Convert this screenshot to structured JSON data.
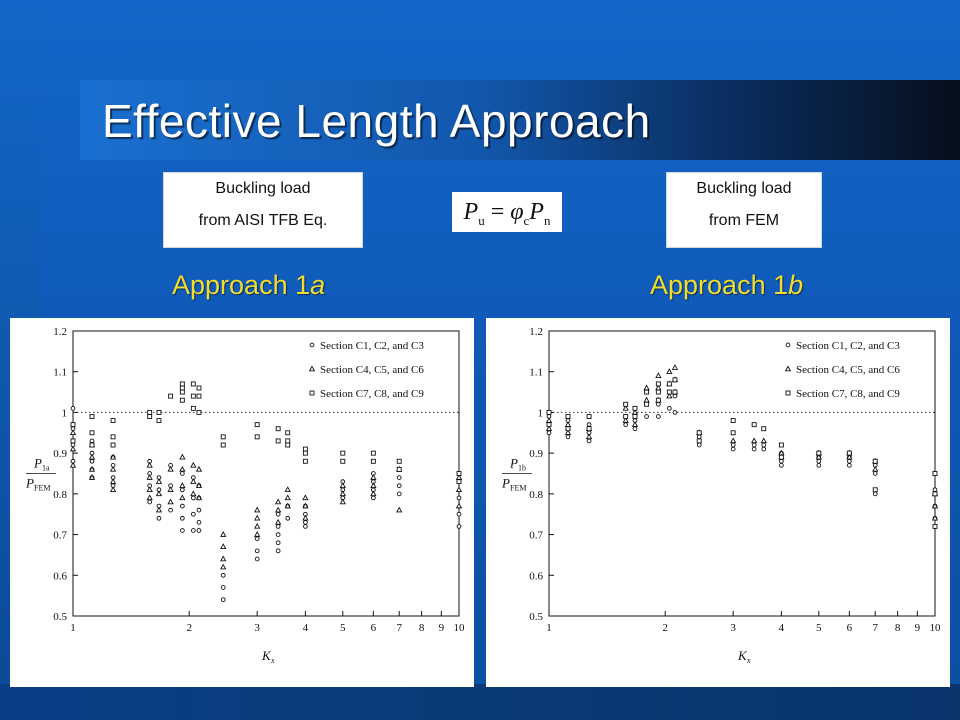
{
  "slide": {
    "title": "Effective Length Approach",
    "left_box": {
      "line1": "Buckling load",
      "line2": "from AISI TFB Eq."
    },
    "right_box": {
      "line1": "Buckling load",
      "line2": "from FEM"
    },
    "formula": {
      "lhs": "P",
      "lhs_sub": "u",
      "eq": " = ",
      "phi": "φ",
      "phi_sub": "c",
      "rhs": "P",
      "rhs_sub": "n"
    },
    "approach_left": {
      "text": "Approach 1",
      "suffix": "a"
    },
    "approach_right": {
      "text": "Approach 1",
      "suffix": "b"
    },
    "colors": {
      "title": "#ffffff",
      "approach": "#f3dc2a",
      "background": "#1466c8"
    }
  },
  "chart_data": [
    {
      "type": "scatter",
      "xscale": "log",
      "xlim": [
        1,
        10
      ],
      "ylim": [
        0.5,
        1.2
      ],
      "xticks": [
        1,
        2,
        3,
        4,
        5,
        6,
        7,
        8,
        9,
        10
      ],
      "yticks": [
        0.5,
        0.6,
        0.7,
        0.8,
        0.9,
        1,
        1.1,
        1.2
      ],
      "ytick_labels": [
        "0.5",
        "0.6",
        "0.7",
        "0.8",
        "0.9",
        "1",
        "1.1",
        "1.2"
      ],
      "xlabel": {
        "main": "K",
        "sub": "x"
      },
      "ylabel": {
        "num_main": "P",
        "num_sub": "1a",
        "den_main": "P",
        "den_sub": "FEM"
      },
      "reference_line": 1,
      "legend_position": "top-right",
      "series": [
        {
          "name": "Section C1, C2, and C3",
          "marker": "circle",
          "x": [
            1,
            1,
            1,
            1,
            1.12,
            1.12,
            1.12,
            1.12,
            1.12,
            1.27,
            1.27,
            1.27,
            1.27,
            1.27,
            1.58,
            1.58,
            1.58,
            1.58,
            1.67,
            1.67,
            1.67,
            1.67,
            1.79,
            1.79,
            1.79,
            1.92,
            1.92,
            1.92,
            1.92,
            1.92,
            2.05,
            2.05,
            2.05,
            2.05,
            2.12,
            2.12,
            2.12,
            2.12,
            2.12,
            2.45,
            2.45,
            2.45,
            3,
            3,
            3,
            3.4,
            3.4,
            3.4,
            3.4,
            3.4,
            3.6,
            3.6,
            4,
            4,
            4,
            4,
            5,
            5,
            5,
            6,
            6,
            6,
            6,
            7,
            7,
            7,
            10,
            10,
            10,
            10
          ],
          "y": [
            1.01,
            0.96,
            0.92,
            0.88,
            0.93,
            0.9,
            0.88,
            0.86,
            0.84,
            0.92,
            0.89,
            0.87,
            0.84,
            0.82,
            0.88,
            0.85,
            0.82,
            0.78,
            0.84,
            0.81,
            0.77,
            0.74,
            0.87,
            0.82,
            0.76,
            0.85,
            0.81,
            0.77,
            0.74,
            0.71,
            0.84,
            0.79,
            0.75,
            0.71,
            0.82,
            0.79,
            0.76,
            0.73,
            0.71,
            0.6,
            0.57,
            0.54,
            0.69,
            0.66,
            0.64,
            0.75,
            0.72,
            0.7,
            0.68,
            0.66,
            0.77,
            0.74,
            0.77,
            0.75,
            0.73,
            0.72,
            0.83,
            0.81,
            0.79,
            0.85,
            0.83,
            0.81,
            0.79,
            0.84,
            0.82,
            0.8,
            0.83,
            0.79,
            0.75,
            0.72
          ]
        },
        {
          "name": "Section C4, C5, and C6",
          "marker": "triangle",
          "x": [
            1,
            1,
            1,
            1.12,
            1.12,
            1.12,
            1.12,
            1.27,
            1.27,
            1.27,
            1.27,
            1.58,
            1.58,
            1.58,
            1.58,
            1.67,
            1.67,
            1.67,
            1.79,
            1.79,
            1.79,
            1.92,
            1.92,
            1.92,
            1.92,
            2.05,
            2.05,
            2.05,
            2.12,
            2.12,
            2.12,
            2.45,
            2.45,
            2.45,
            2.45,
            3,
            3,
            3,
            3,
            3.4,
            3.4,
            3.4,
            3.6,
            3.6,
            3.6,
            4,
            4,
            4,
            5,
            5,
            5,
            6,
            6,
            6,
            7,
            7,
            10,
            10,
            10
          ],
          "y": [
            0.95,
            0.91,
            0.87,
            0.92,
            0.89,
            0.86,
            0.84,
            0.89,
            0.86,
            0.83,
            0.81,
            0.87,
            0.84,
            0.81,
            0.79,
            0.83,
            0.8,
            0.76,
            0.86,
            0.81,
            0.78,
            0.89,
            0.86,
            0.82,
            0.79,
            0.87,
            0.83,
            0.8,
            0.86,
            0.82,
            0.79,
            0.7,
            0.67,
            0.64,
            0.62,
            0.76,
            0.74,
            0.72,
            0.7,
            0.78,
            0.76,
            0.73,
            0.81,
            0.79,
            0.77,
            0.79,
            0.77,
            0.74,
            0.82,
            0.8,
            0.78,
            0.84,
            0.82,
            0.8,
            0.86,
            0.76,
            0.84,
            0.81,
            0.77
          ]
        },
        {
          "name": "Section C7, C8, and C9",
          "marker": "square",
          "x": [
            1,
            1,
            1.12,
            1.12,
            1.12,
            1.27,
            1.27,
            1.27,
            1.58,
            1.58,
            1.67,
            1.67,
            1.79,
            1.92,
            1.92,
            1.92,
            1.92,
            2.05,
            2.05,
            2.05,
            2.12,
            2.12,
            2.12,
            2.45,
            2.45,
            3,
            3,
            3.4,
            3.4,
            3.6,
            3.6,
            3.6,
            4,
            4,
            4,
            5,
            5,
            6,
            6,
            7,
            7,
            10,
            10
          ],
          "y": [
            0.97,
            0.93,
            0.99,
            0.95,
            0.92,
            0.98,
            0.94,
            0.92,
            0.99,
            1,
            0.98,
            1,
            1.04,
            1.07,
            1.06,
            1.05,
            1.03,
            1.07,
            1.04,
            1.01,
            1.06,
            1.04,
            1,
            0.94,
            0.92,
            0.97,
            0.94,
            0.96,
            0.93,
            0.95,
            0.93,
            0.92,
            0.91,
            0.9,
            0.88,
            0.9,
            0.88,
            0.9,
            0.88,
            0.88,
            0.86,
            0.85,
            0.83
          ]
        }
      ]
    },
    {
      "type": "scatter",
      "xscale": "log",
      "xlim": [
        1,
        10
      ],
      "ylim": [
        0.5,
        1.2
      ],
      "xticks": [
        1,
        2,
        3,
        4,
        5,
        6,
        7,
        8,
        9,
        10
      ],
      "yticks": [
        0.5,
        0.6,
        0.7,
        0.8,
        0.9,
        1,
        1.1,
        1.2
      ],
      "ytick_labels": [
        "0.5",
        "0.6",
        "0.7",
        "0.8",
        "0.9",
        "1",
        "1.1",
        "1.2"
      ],
      "xlabel": {
        "main": "K",
        "sub": "x"
      },
      "ylabel": {
        "num_main": "P",
        "num_sub": "1b",
        "den_main": "P",
        "den_sub": "FEM"
      },
      "reference_line": 1,
      "legend_position": "top-right",
      "series": [
        {
          "name": "Section C1, C2, and C3",
          "marker": "circle",
          "x": [
            1,
            1,
            1,
            1.12,
            1.12,
            1.12,
            1.27,
            1.27,
            1.27,
            1.58,
            1.58,
            1.67,
            1.67,
            1.79,
            1.79,
            1.92,
            1.92,
            1.92,
            2.05,
            2.05,
            2.12,
            2.12,
            2.45,
            2.45,
            3,
            3,
            3.4,
            3.4,
            3.6,
            3.6,
            4,
            4,
            4,
            5,
            5,
            5,
            6,
            6,
            6,
            7,
            7,
            7,
            10,
            10,
            10,
            10
          ],
          "y": [
            0.99,
            0.97,
            0.95,
            0.98,
            0.96,
            0.94,
            0.97,
            0.95,
            0.93,
            0.99,
            0.97,
            0.98,
            0.96,
            1.02,
            0.99,
            1.05,
            1.02,
            0.99,
            1.05,
            1.01,
            1.04,
            1,
            0.94,
            0.92,
            0.92,
            0.91,
            0.92,
            0.91,
            0.92,
            0.91,
            0.9,
            0.88,
            0.87,
            0.89,
            0.88,
            0.87,
            0.89,
            0.88,
            0.87,
            0.87,
            0.85,
            0.8,
            0.81,
            0.77,
            0.74,
            0.72
          ]
        },
        {
          "name": "Section C4, C5, and C6",
          "marker": "triangle",
          "x": [
            1,
            1,
            1.12,
            1.12,
            1.27,
            1.27,
            1.58,
            1.58,
            1.67,
            1.67,
            1.79,
            1.79,
            1.92,
            1.92,
            1.92,
            2.05,
            2.05,
            2.05,
            2.12,
            2.12,
            2.12,
            2.45,
            3,
            3.4,
            3.6,
            4,
            4,
            5,
            5,
            6,
            6,
            7,
            7,
            10,
            10,
            10
          ],
          "y": [
            0.98,
            0.96,
            0.97,
            0.95,
            0.96,
            0.94,
            1.01,
            0.98,
            1,
            0.97,
            1.06,
            1.03,
            1.09,
            1.06,
            1.03,
            1.1,
            1.07,
            1.04,
            1.11,
            1.08,
            1.05,
            0.95,
            0.93,
            0.93,
            0.93,
            0.9,
            0.89,
            0.9,
            0.89,
            0.9,
            0.89,
            0.88,
            0.86,
            0.8,
            0.77,
            0.74
          ]
        },
        {
          "name": "Section C7, C8, and C9",
          "marker": "square",
          "x": [
            1,
            1,
            1.12,
            1.12,
            1.27,
            1.27,
            1.58,
            1.58,
            1.67,
            1.67,
            1.79,
            1.79,
            1.92,
            1.92,
            1.92,
            2.05,
            2.05,
            2.12,
            2.12,
            2.45,
            2.45,
            3,
            3,
            3.4,
            3.6,
            4,
            4,
            5,
            6,
            7,
            7,
            10,
            10,
            10
          ],
          "y": [
            1,
            0.97,
            0.99,
            0.96,
            0.99,
            0.96,
            1.02,
            0.99,
            1.01,
            0.99,
            1.05,
            1.02,
            1.07,
            1.05,
            1.03,
            1.07,
            1.05,
            1.08,
            1.05,
            0.95,
            0.93,
            0.98,
            0.95,
            0.97,
            0.96,
            0.92,
            0.89,
            0.9,
            0.9,
            0.88,
            0.81,
            0.85,
            0.8,
            0.72
          ]
        }
      ]
    }
  ]
}
